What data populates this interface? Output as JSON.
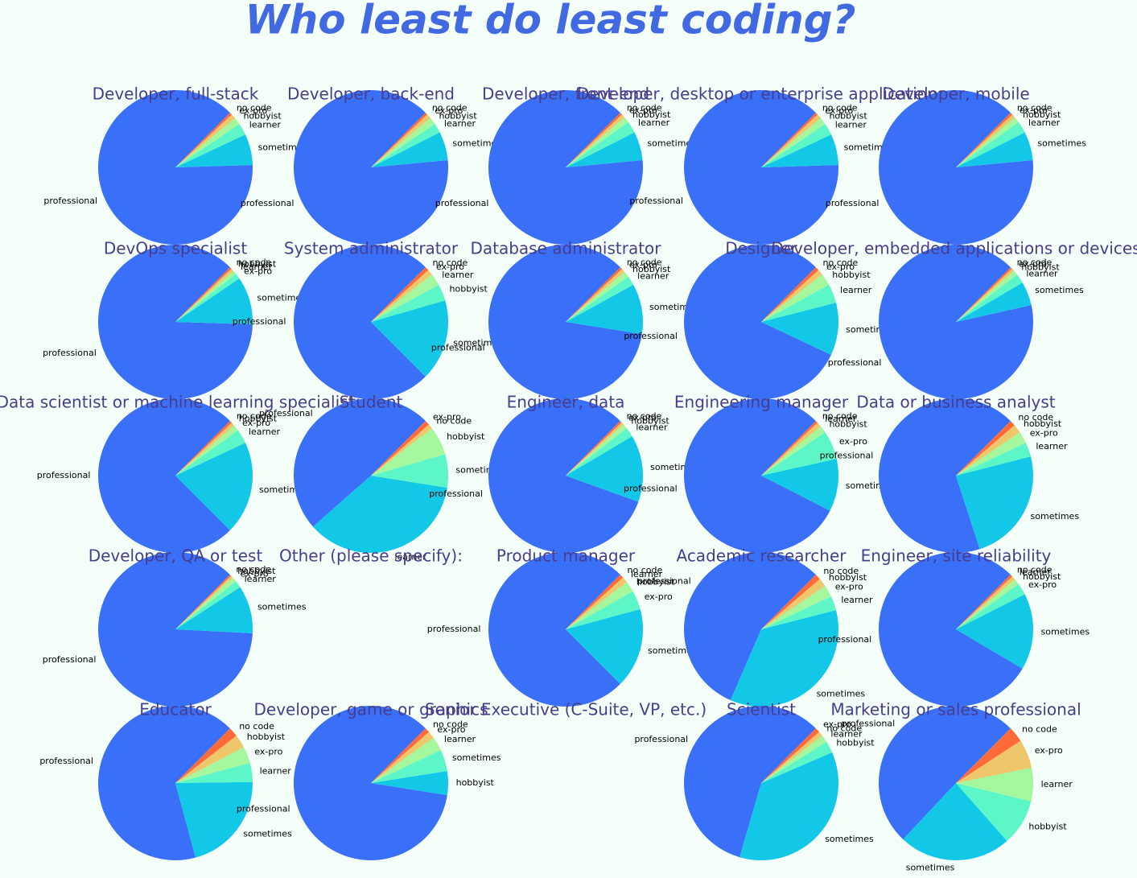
{
  "title": "Who least do least coding?",
  "colors": [
    "#3a70f8",
    "#13c8e6",
    "#5cf6c8",
    "#a4f79c",
    "#eec76d",
    "#ff6a3b"
  ],
  "chart_data": [
    {
      "type": "pie",
      "title": "Developer, full-stack",
      "categories": [
        "professional",
        "sometimes",
        "learner",
        "hobbyist",
        "ex-pro",
        "no code"
      ],
      "values": [
        88,
        6.5,
        2.5,
        1.5,
        1,
        0.5
      ]
    },
    {
      "type": "pie",
      "title": "Developer, back-end",
      "categories": [
        "professional",
        "sometimes",
        "learner",
        "hobbyist",
        "ex-pro",
        "no code"
      ],
      "values": [
        89,
        6,
        2,
        1.5,
        1,
        0.5
      ]
    },
    {
      "type": "pie",
      "title": "Developer, front-end",
      "categories": [
        "professional",
        "sometimes",
        "learner",
        "hobbyist",
        "ex-pro",
        "no code"
      ],
      "values": [
        89,
        6,
        2.5,
        1.2,
        0.8,
        0.5
      ]
    },
    {
      "type": "pie",
      "title": "Developer, desktop or enterprise applications",
      "categories": [
        "professional",
        "sometimes",
        "learner",
        "hobbyist",
        "ex-pro",
        "no code"
      ],
      "values": [
        88,
        6.5,
        2.5,
        1.5,
        1,
        0.5
      ]
    },
    {
      "type": "pie",
      "title": "Developer, mobile",
      "categories": [
        "professional",
        "sometimes",
        "learner",
        "hobbyist",
        "ex-pro",
        "no code"
      ],
      "values": [
        89,
        6,
        2.5,
        1.2,
        0.8,
        0.5
      ]
    },
    {
      "type": "pie",
      "title": "DevOps specialist",
      "categories": [
        "professional",
        "sometimes",
        "ex-pro",
        "learner",
        "hobbyist",
        "no code"
      ],
      "values": [
        87,
        10,
        1.2,
        0.8,
        0.6,
        0.4
      ]
    },
    {
      "type": "pie",
      "title": "System administrator",
      "categories": [
        "professional",
        "sometimes",
        "hobbyist",
        "learner",
        "ex-pro",
        "no code"
      ],
      "values": [
        75,
        17,
        3.5,
        2.5,
        1.2,
        0.8
      ]
    },
    {
      "type": "pie",
      "title": "Database administrator",
      "categories": [
        "professional",
        "sometimes",
        "learner",
        "hobbyist",
        "ex-pro",
        "no code"
      ],
      "values": [
        85,
        10.5,
        2,
        1.2,
        0.8,
        0.5
      ]
    },
    {
      "type": "pie",
      "title": "Designer",
      "categories": [
        "professional",
        "sometimes",
        "learner",
        "hobbyist",
        "ex-pro",
        "no code"
      ],
      "values": [
        80.5,
        11,
        4,
        2.5,
        1.2,
        0.8
      ]
    },
    {
      "type": "pie",
      "title": "Developer, embedded applications or devices",
      "categories": [
        "professional",
        "sometimes",
        "learner",
        "hobbyist",
        "ex-pro",
        "no code"
      ],
      "values": [
        91,
        5,
        2,
        1,
        0.6,
        0.4
      ]
    },
    {
      "type": "pie",
      "title": "Data scientist or machine learning specialist",
      "categories": [
        "professional",
        "sometimes",
        "learner",
        "ex-pro",
        "hobbyist",
        "no code"
      ],
      "values": [
        75,
        19.5,
        3,
        1.2,
        0.8,
        0.5
      ]
    },
    {
      "type": "pie",
      "title": "Student",
      "categories": [
        "professional",
        "learner",
        "sometimes",
        "hobbyist",
        "no code",
        "ex-pro"
      ],
      "values": [
        49,
        36,
        7,
        6,
        1,
        1
      ]
    },
    {
      "type": "pie",
      "title": "Engineer, data",
      "categories": [
        "professional",
        "sometimes",
        "learner",
        "hobbyist",
        "ex-pro",
        "no code"
      ],
      "values": [
        82,
        14,
        2,
        1,
        0.6,
        0.4
      ]
    },
    {
      "type": "pie",
      "title": "Engineering manager",
      "categories": [
        "professional",
        "sometimes",
        "ex-pro",
        "hobbyist",
        "learner",
        "no code"
      ],
      "values": [
        80,
        11,
        6,
        1.5,
        1,
        0.5
      ]
    },
    {
      "type": "pie",
      "title": "Data or business analyst",
      "categories": [
        "professional",
        "sometimes",
        "learner",
        "ex-pro",
        "hobbyist",
        "no code"
      ],
      "values": [
        67.5,
        24,
        3,
        2.5,
        1.8,
        1.2
      ]
    },
    {
      "type": "pie",
      "title": "Developer, QA or test",
      "categories": [
        "professional",
        "sometimes",
        "learner",
        "ex-pro",
        "hobbyist",
        "no code"
      ],
      "values": [
        86.7,
        10,
        1.5,
        1,
        0.5,
        0.3
      ]
    },
    {
      "type": "pie",
      "title": "Other (please specify):"
    },
    {
      "type": "pie",
      "title": "Product manager",
      "categories": [
        "professional",
        "sometimes",
        "ex-pro",
        "hobbyist",
        "learner",
        "no code"
      ],
      "values": [
        75,
        16.7,
        4,
        2.3,
        1.2,
        0.8
      ]
    },
    {
      "type": "pie",
      "title": "Academic researcher",
      "categories": [
        "professional",
        "sometimes",
        "learner",
        "ex-pro",
        "hobbyist",
        "no code"
      ],
      "values": [
        56,
        35.5,
        3,
        2.5,
        1.8,
        1.2
      ]
    },
    {
      "type": "pie",
      "title": "Engineer, site reliability",
      "categories": [
        "professional",
        "sometimes",
        "ex-pro",
        "hobbyist",
        "learner",
        "no code"
      ],
      "values": [
        79,
        16,
        2.5,
        1.2,
        0.8,
        0.5
      ]
    },
    {
      "type": "pie",
      "title": "Educator",
      "categories": [
        "professional",
        "sometimes",
        "learner",
        "ex-pro",
        "hobbyist",
        "no code"
      ],
      "values": [
        66.7,
        21,
        4,
        3.5,
        2.8,
        2
      ]
    },
    {
      "type": "pie",
      "title": "Developer, game or graphics",
      "categories": [
        "professional",
        "hobbyist",
        "sometimes",
        "learner",
        "ex-pro",
        "no code"
      ],
      "values": [
        85,
        5,
        4.5,
        3,
        1.5,
        1
      ]
    },
    {
      "type": "pie",
      "title": "Senior Executive (C-Suite, VP, etc.)"
    },
    {
      "type": "pie",
      "title": "Scientist",
      "categories": [
        "professional",
        "sometimes",
        "hobbyist",
        "learner",
        "no code",
        "ex-pro"
      ],
      "values": [
        58,
        36,
        2.5,
        1.5,
        1,
        1
      ]
    },
    {
      "type": "pie",
      "title": "Marketing or sales professional",
      "categories": [
        "professional",
        "sometimes",
        "hobbyist",
        "learner",
        "ex-pro",
        "no code"
      ],
      "values": [
        50.5,
        23.5,
        9.7,
        7,
        6,
        3.3
      ]
    }
  ]
}
